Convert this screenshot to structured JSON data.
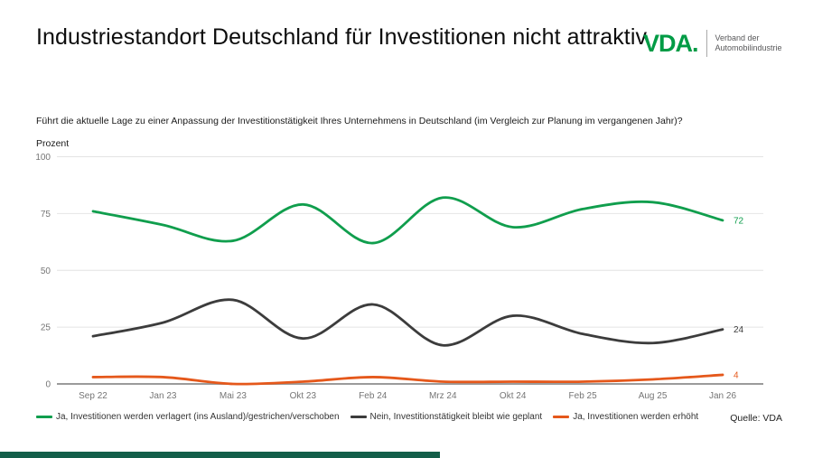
{
  "header": {
    "title": "Industriestandort Deutschland für Investitionen nicht attraktiv",
    "logo": {
      "text": "VDA.",
      "subtext_line1": "Verband der",
      "subtext_line2": "Automobilindustrie"
    }
  },
  "question": "Führt die aktuelle Lage zu einer Anpassung der Investitionstätigkeit Ihres Unternehmens in Deutschland (im Vergleich zur Planung im vergangenen Jahr)?",
  "axis_unit_label": "Prozent",
  "source": "Quelle: VDA",
  "colors": {
    "logo_green": "#009B45",
    "footer_bar": "#135E49",
    "grid_line": "#E4E4E4",
    "zero_line": "#9B9B9B",
    "tick_text": "#757575"
  },
  "chart_data": {
    "type": "line",
    "title": "Industriestandort Deutschland für Investitionen nicht attraktiv",
    "subtitle": "Führt die aktuelle Lage zu einer Anpassung der Investitionstätigkeit Ihres Unternehmens in Deutschland (im Vergleich zur Planung im vergangenen Jahr)?",
    "ylabel": "Prozent",
    "xlabel": "",
    "categories": [
      "Sep 22",
      "Jan 23",
      "Mai 23",
      "Okt 23",
      "Feb 24",
      "Mrz 24",
      "Okt 24",
      "Feb 25",
      "Aug 25",
      "Jan 26"
    ],
    "series": [
      {
        "name": "Ja, Investitionen werden verlagert (ins Ausland)/gestrichen/verschoben",
        "color": "#109E4D",
        "values": [
          76,
          70,
          63,
          79,
          62,
          82,
          69,
          77,
          80,
          72
        ],
        "end_label": "72"
      },
      {
        "name": "Nein, Investitionstätigkeit bleibt wie geplant",
        "color": "#3C3C3C",
        "values": [
          21,
          27,
          37,
          20,
          35,
          17,
          30,
          22,
          18,
          24
        ],
        "end_label": "24"
      },
      {
        "name": "Ja, Investitionen werden erhöht",
        "color": "#E5581B",
        "values": [
          3,
          3,
          0,
          1,
          3,
          1,
          1,
          1,
          2,
          4
        ],
        "end_label": "4"
      }
    ],
    "ylim": [
      0,
      100
    ],
    "y_ticks": [
      0,
      25,
      50,
      75,
      100
    ],
    "grid": true,
    "curve": "smooth",
    "legend_position": "bottom"
  }
}
